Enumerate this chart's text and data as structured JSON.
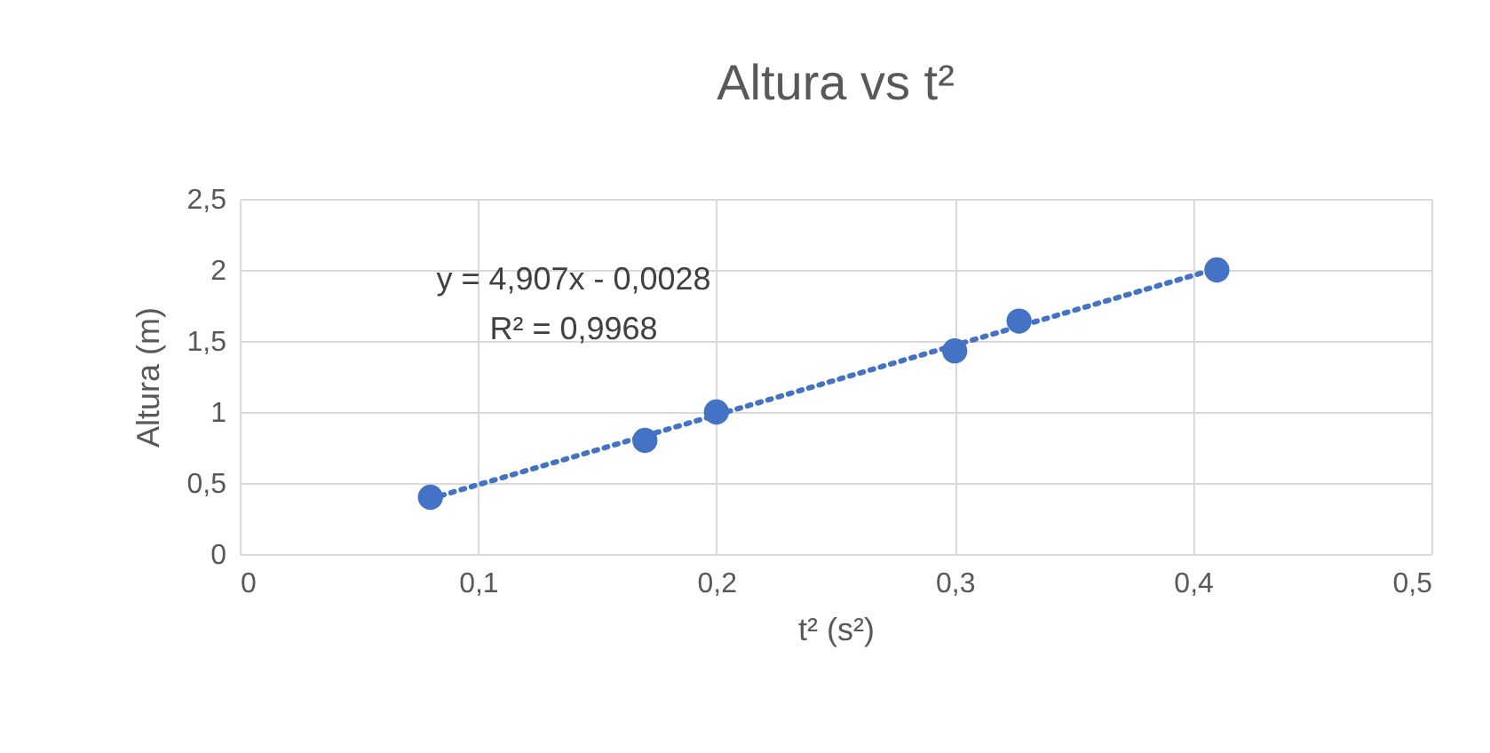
{
  "chart_data": {
    "type": "scatter",
    "title": "Altura vs t²",
    "xlabel": "t² (s²)",
    "ylabel": "Altura (m)",
    "annotations": [
      "y = 4,907x - 0,0028",
      "R² = 0,9968"
    ],
    "series": [
      {
        "type": "scatter",
        "color": "#4472c4",
        "marker": "circle",
        "x": [
          0.08,
          0.17,
          0.2,
          0.3,
          0.327,
          0.41
        ],
        "values": [
          0.4,
          0.8,
          1.0,
          1.43,
          1.64,
          2.0
        ]
      },
      {
        "type": "line",
        "color": "#4472c4",
        "line_style": "dotted",
        "marker": "none",
        "x": [
          0.08,
          0.41
        ],
        "values": [
          0.39,
          2.01
        ]
      }
    ],
    "xlim": [
      0,
      0.5
    ],
    "xticks": [
      0,
      {
        "value": 0.1,
        "label": "0,1"
      },
      {
        "value": 0.2,
        "label": "0,2"
      },
      {
        "value": 0.3,
        "label": "0,3"
      },
      {
        "value": 0.4,
        "label": "0,4"
      },
      {
        "value": 0.5,
        "label": "0,5"
      }
    ],
    "ylim": [
      0,
      2.5
    ],
    "yticks": [
      0,
      {
        "value": 0.5,
        "label": "0,5"
      },
      1,
      {
        "value": 1.5,
        "label": "1,5"
      },
      2,
      {
        "value": 2.5,
        "label": "2,5"
      }
    ],
    "grid": true
  }
}
